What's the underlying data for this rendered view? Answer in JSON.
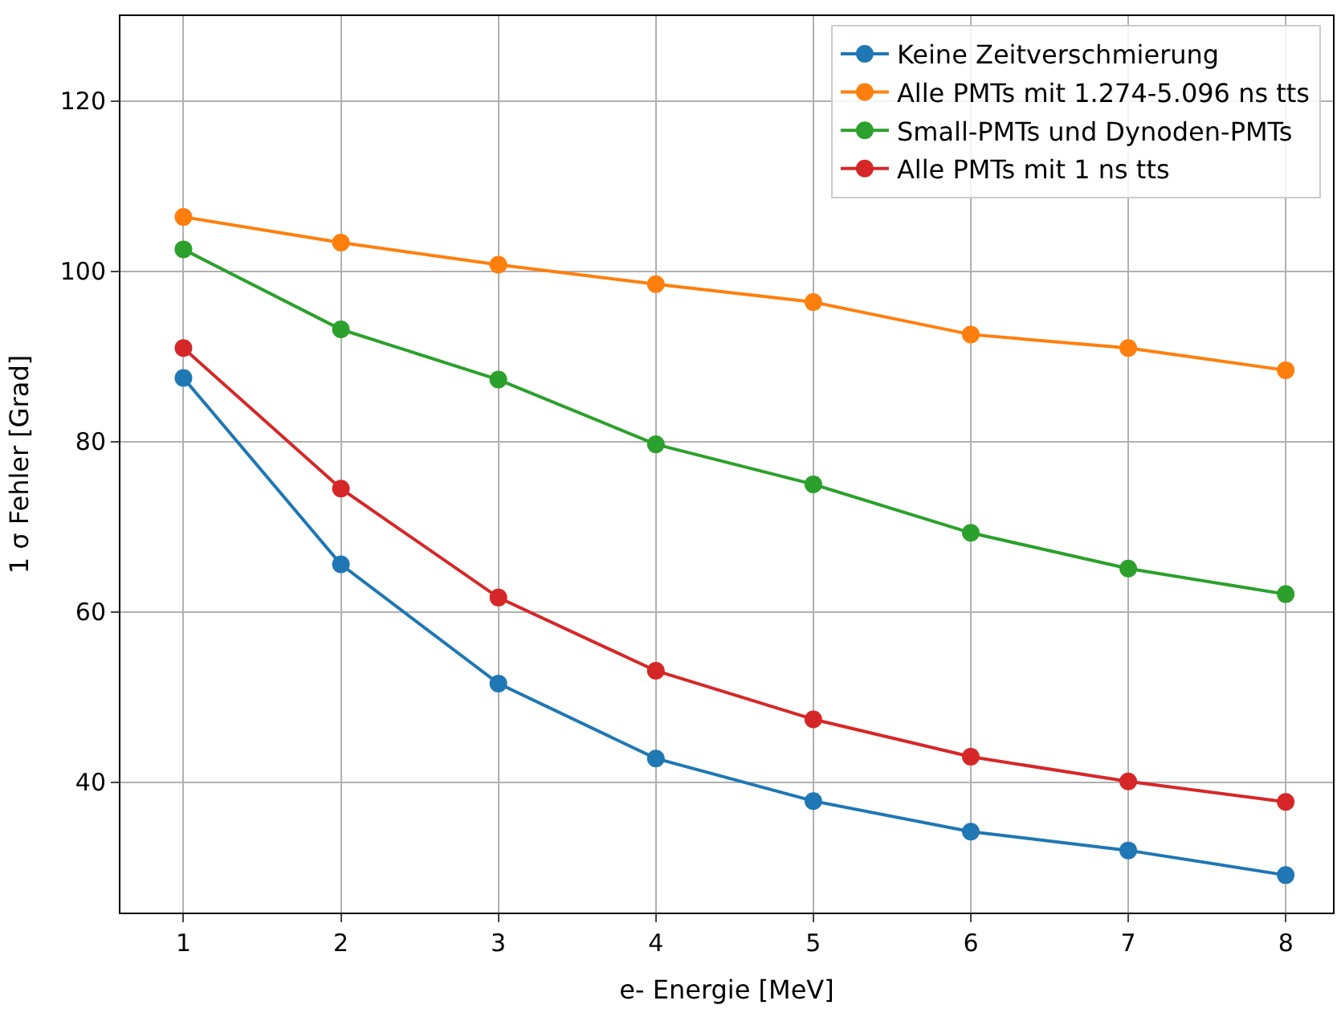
{
  "chart_data": {
    "type": "line",
    "xlabel": "e- Energie [MeV]",
    "ylabel": "1 σ Fehler [Grad]",
    "x": [
      1,
      2,
      3,
      4,
      5,
      6,
      7,
      8
    ],
    "series": [
      {
        "name": "Keine Zeitverschmierung",
        "color": "#1f77b4",
        "values": [
          87.5,
          65.6,
          51.6,
          42.8,
          37.8,
          34.2,
          32.0,
          29.1
        ]
      },
      {
        "name": "Alle PMTs mit 1.274-5.096 ns tts",
        "color": "#ff7f0e",
        "values": [
          106.4,
          103.4,
          100.8,
          98.5,
          96.4,
          92.6,
          91.0,
          88.4
        ]
      },
      {
        "name": "Small-PMTs und Dynoden-PMTs",
        "color": "#2ca02c",
        "values": [
          102.6,
          93.2,
          87.3,
          79.7,
          75.0,
          69.3,
          65.1,
          62.1
        ]
      },
      {
        "name": "Alle PMTs mit 1 ns tts",
        "color": "#d62728",
        "values": [
          91.0,
          74.5,
          61.7,
          53.1,
          47.4,
          43.0,
          40.1,
          37.7
        ]
      }
    ],
    "xlim": [
      0.6,
      8.3
    ],
    "ylim": [
      24.7,
      130
    ],
    "xticks": [
      1,
      2,
      3,
      4,
      5,
      6,
      7,
      8
    ],
    "yticks": [
      40,
      60,
      80,
      100,
      120
    ],
    "grid": true,
    "legend": "top right",
    "marker": "circle",
    "line_style": "solid"
  }
}
